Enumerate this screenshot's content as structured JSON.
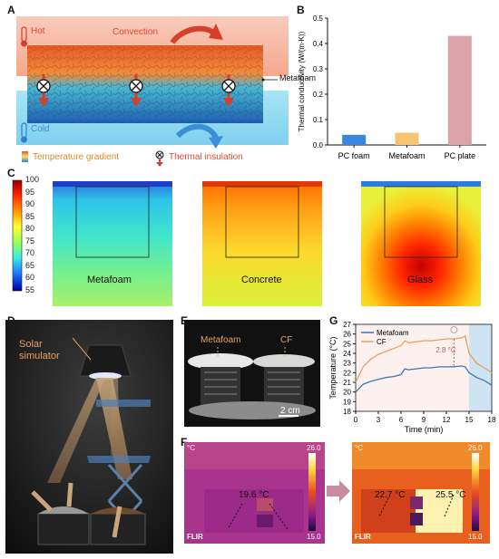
{
  "panels": {
    "A": "A",
    "B": "B",
    "C": "C",
    "D": "D",
    "E": "E",
    "F": "F",
    "G": "G"
  },
  "panelA": {
    "hot": "Hot",
    "cold": "Cold",
    "convection": "Convection",
    "metafoam": "Metafoam",
    "temp_gradient": "Temperature gradient",
    "thermal_insulation": "Thermal insulation"
  },
  "panelC": {
    "colorbar_ticks": [
      "100",
      "95",
      "90",
      "85",
      "80",
      "75",
      "70",
      "65",
      "60",
      "55"
    ],
    "materials": [
      "Metafoam",
      "Concrete",
      "Glass"
    ]
  },
  "panelD": {
    "label": "Solar\nsimulator"
  },
  "panelE": {
    "metafoam": "Metafoam",
    "cf": "CF",
    "scale": "2 cm"
  },
  "panelF": {
    "unit": "°C",
    "max": "26.0",
    "min": "15.0",
    "brand": "FLIR",
    "left_annotation": "19.6 °C",
    "right_left": "22.7 °C",
    "right_right": "25.5 °C"
  },
  "chart_data": [
    {
      "type": "bar",
      "categories": [
        "PC foam",
        "Metafoam",
        "PC plate"
      ],
      "values": [
        0.04,
        0.048,
        0.43
      ],
      "colors": [
        "#3c85e0",
        "#f7c36e",
        "#d9a3a8"
      ],
      "ylabel": "Thermal conductivity (W/(m·K))",
      "ylim": [
        0,
        0.5
      ],
      "yticks": [
        0.0,
        0.1,
        0.2,
        0.3,
        0.4,
        0.5
      ]
    },
    {
      "type": "line",
      "xlabel": "Time (min)",
      "ylabel": "Temperature (°C)",
      "xlim": [
        0,
        18
      ],
      "ylim": [
        18,
        27
      ],
      "xticks": [
        0,
        3,
        6,
        9,
        12,
        15,
        18
      ],
      "yticks": [
        18,
        19,
        20,
        21,
        22,
        23,
        24,
        25,
        26,
        27
      ],
      "annotation": "2.8 °C",
      "series": [
        {
          "name": "Metafoam",
          "color": "#3a78b5",
          "x": [
            0,
            1,
            2,
            3,
            4,
            5,
            6,
            6.5,
            7,
            8,
            9,
            10,
            11,
            12,
            13,
            14,
            14.5,
            15,
            16,
            17,
            18
          ],
          "y": [
            20.0,
            20.8,
            21.1,
            21.3,
            21.5,
            21.6,
            21.8,
            22.4,
            22.3,
            22.4,
            22.5,
            22.5,
            22.6,
            22.6,
            22.6,
            22.7,
            22.6,
            22.0,
            21.5,
            21.2,
            20.7
          ]
        },
        {
          "name": "CF",
          "color": "#e8a060",
          "x": [
            0,
            1,
            2,
            3,
            4,
            5,
            6,
            6.5,
            7,
            8,
            9,
            10,
            11,
            12,
            13,
            14,
            14.5,
            15,
            16,
            17,
            18
          ],
          "y": [
            21.0,
            22.6,
            23.4,
            23.9,
            24.2,
            24.5,
            24.8,
            25.3,
            25.1,
            25.2,
            25.3,
            25.3,
            25.4,
            25.5,
            25.5,
            25.6,
            25.8,
            24.0,
            23.0,
            22.5,
            22.0
          ]
        }
      ]
    }
  ]
}
